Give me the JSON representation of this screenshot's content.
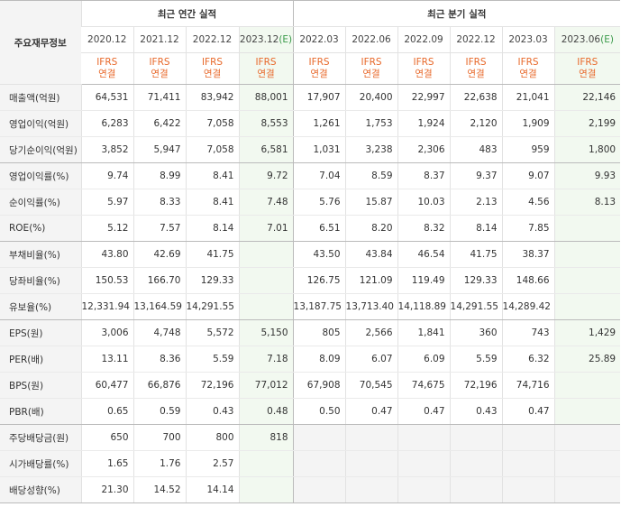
{
  "header": {
    "row_label": "주요재무정보",
    "annual_title": "최근 연간 실적",
    "quarter_title": "최근 분기 실적"
  },
  "periods": [
    {
      "date": "2020.12",
      "est": "",
      "estimate": false
    },
    {
      "date": "2021.12",
      "est": "",
      "estimate": false
    },
    {
      "date": "2022.12",
      "est": "",
      "estimate": false
    },
    {
      "date": "2023.12",
      "est": "(E)",
      "estimate": true
    },
    {
      "date": "2022.03",
      "est": "",
      "estimate": false
    },
    {
      "date": "2022.06",
      "est": "",
      "estimate": false
    },
    {
      "date": "2022.09",
      "est": "",
      "estimate": false
    },
    {
      "date": "2022.12",
      "est": "",
      "estimate": false
    },
    {
      "date": "2023.03",
      "est": "",
      "estimate": false
    },
    {
      "date": "2023.06",
      "est": "(E)",
      "estimate": true
    }
  ],
  "ifrs": {
    "line1": "IFRS",
    "line2": "연결"
  },
  "rows": [
    {
      "label": "매출액(억원)",
      "values": [
        "64,531",
        "71,411",
        "83,942",
        "88,001",
        "17,907",
        "20,400",
        "22,997",
        "22,638",
        "21,041",
        "22,146"
      ]
    },
    {
      "label": "영업이익(억원)",
      "values": [
        "6,283",
        "6,422",
        "7,058",
        "8,553",
        "1,261",
        "1,753",
        "1,924",
        "2,120",
        "1,909",
        "2,199"
      ]
    },
    {
      "label": "당기순이익(억원)",
      "values": [
        "3,852",
        "5,947",
        "7,058",
        "6,581",
        "1,031",
        "3,238",
        "2,306",
        "483",
        "959",
        "1,800"
      ]
    },
    {
      "label": "영업이익률(%)",
      "values": [
        "9.74",
        "8.99",
        "8.41",
        "9.72",
        "7.04",
        "8.59",
        "8.37",
        "9.37",
        "9.07",
        "9.93"
      ]
    },
    {
      "label": "순이익률(%)",
      "values": [
        "5.97",
        "8.33",
        "8.41",
        "7.48",
        "5.76",
        "15.87",
        "10.03",
        "2.13",
        "4.56",
        "8.13"
      ]
    },
    {
      "label": "ROE(%)",
      "values": [
        "5.12",
        "7.57",
        "8.14",
        "7.01",
        "6.51",
        "8.20",
        "8.32",
        "8.14",
        "7.85",
        ""
      ]
    },
    {
      "label": "부채비율(%)",
      "values": [
        "43.80",
        "42.69",
        "41.75",
        "",
        "43.50",
        "43.84",
        "46.54",
        "41.75",
        "38.37",
        ""
      ]
    },
    {
      "label": "당좌비율(%)",
      "values": [
        "150.53",
        "166.70",
        "129.33",
        "",
        "126.75",
        "121.09",
        "119.49",
        "129.33",
        "148.66",
        ""
      ]
    },
    {
      "label": "유보율(%)",
      "values": [
        "12,331.94",
        "13,164.59",
        "14,291.55",
        "",
        "13,187.75",
        "13,713.40",
        "14,118.89",
        "14,291.55",
        "14,289.42",
        ""
      ]
    },
    {
      "label": "EPS(원)",
      "values": [
        "3,006",
        "4,748",
        "5,572",
        "5,150",
        "805",
        "2,566",
        "1,841",
        "360",
        "743",
        "1,429"
      ]
    },
    {
      "label": "PER(배)",
      "values": [
        "13.11",
        "8.36",
        "5.59",
        "7.18",
        "8.09",
        "6.07",
        "6.09",
        "5.59",
        "6.32",
        "25.89"
      ]
    },
    {
      "label": "BPS(원)",
      "values": [
        "60,477",
        "66,876",
        "72,196",
        "77,012",
        "67,908",
        "70,545",
        "74,675",
        "72,196",
        "74,716",
        ""
      ]
    },
    {
      "label": "PBR(배)",
      "values": [
        "0.65",
        "0.59",
        "0.43",
        "0.48",
        "0.50",
        "0.47",
        "0.47",
        "0.43",
        "0.47",
        ""
      ]
    },
    {
      "label": "주당배당금(원)",
      "values": [
        "650",
        "700",
        "800",
        "818",
        "",
        "",
        "",
        "",
        "",
        ""
      ]
    },
    {
      "label": "시가배당률(%)",
      "values": [
        "1.65",
        "1.76",
        "2.57",
        "",
        "",
        "",
        "",
        "",
        "",
        ""
      ]
    },
    {
      "label": "배당성향(%)",
      "values": [
        "21.30",
        "14.52",
        "14.14",
        "",
        "",
        "",
        "",
        "",
        "",
        ""
      ]
    }
  ]
}
